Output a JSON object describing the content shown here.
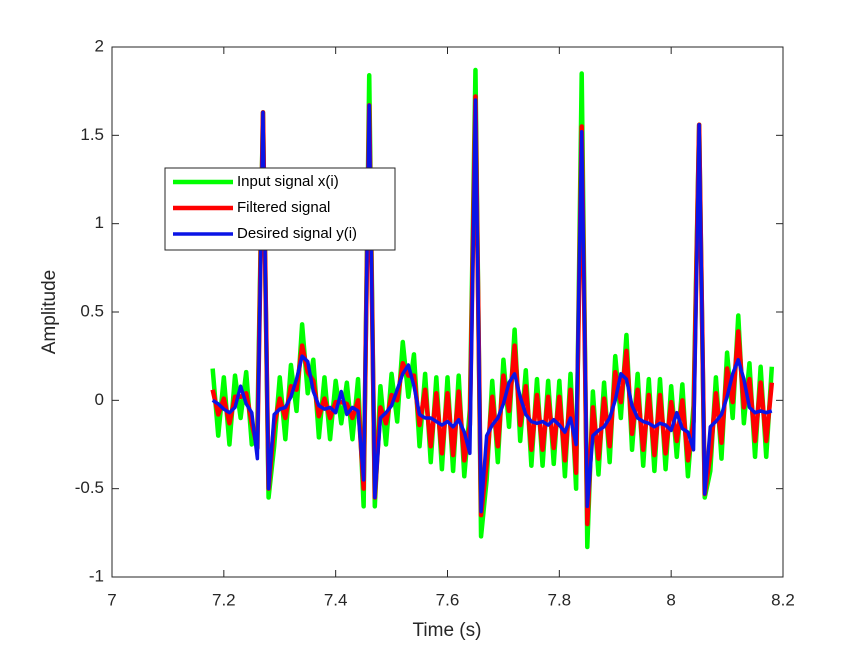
{
  "chart_data": {
    "type": "line",
    "xlabel": "Time (s)",
    "ylabel": "Amplitude",
    "x": [
      7.18,
      7.19,
      7.2,
      7.21,
      7.22,
      7.23,
      7.24,
      7.25,
      7.26,
      7.27,
      7.28,
      7.29,
      7.3,
      7.31,
      7.32,
      7.33,
      7.34,
      7.35,
      7.36,
      7.37,
      7.38,
      7.39,
      7.4,
      7.41,
      7.42,
      7.43,
      7.44,
      7.45,
      7.46,
      7.47,
      7.48,
      7.49,
      7.5,
      7.51,
      7.52,
      7.53,
      7.54,
      7.55,
      7.56,
      7.57,
      7.58,
      7.59,
      7.6,
      7.61,
      7.62,
      7.63,
      7.64,
      7.65,
      7.66,
      7.67,
      7.68,
      7.69,
      7.7,
      7.71,
      7.72,
      7.73,
      7.74,
      7.75,
      7.76,
      7.77,
      7.78,
      7.79,
      7.8,
      7.81,
      7.82,
      7.83,
      7.84,
      7.85,
      7.86,
      7.87,
      7.88,
      7.89,
      7.9,
      7.91,
      7.92,
      7.93,
      7.94,
      7.95,
      7.96,
      7.97,
      7.98,
      7.99,
      8,
      8.01,
      8.02,
      8.03,
      8.04,
      8.05,
      8.06,
      8.07,
      8.08,
      8.09,
      8.1,
      8.11,
      8.12,
      8.13,
      8.14,
      8.15,
      8.16,
      8.17,
      8.18
    ],
    "series": [
      {
        "name": "Input signal x(i)",
        "color": "#00ff00",
        "width": 4.5,
        "values": [
          0.18,
          -0.2,
          0.13,
          -0.25,
          0.14,
          -0.1,
          0.16,
          -0.25,
          -0.15,
          1.63,
          -0.55,
          -0.26,
          0.13,
          -0.22,
          0.2,
          -0.06,
          0.43,
          0.04,
          0.23,
          -0.21,
          0.13,
          -0.22,
          0.11,
          -0.13,
          0.1,
          -0.22,
          0.12,
          -0.6,
          1.84,
          -0.6,
          0.08,
          -0.25,
          0.15,
          -0.12,
          0.33,
          0.02,
          0.26,
          -0.26,
          0.15,
          -0.35,
          0.13,
          -0.39,
          0.13,
          -0.4,
          0.14,
          -0.43,
          -0.05,
          1.87,
          -0.77,
          -0.45,
          0.11,
          -0.35,
          0.23,
          -0.15,
          0.4,
          -0.23,
          0.17,
          -0.37,
          0.12,
          -0.37,
          0.11,
          -0.36,
          0.11,
          -0.43,
          0.15,
          -0.5,
          1.85,
          -0.83,
          0.05,
          -0.42,
          0.1,
          -0.35,
          0.25,
          -0.1,
          0.37,
          -0.28,
          0.15,
          -0.37,
          0.12,
          -0.4,
          0.12,
          -0.39,
          0.08,
          -0.32,
          0.09,
          -0.43,
          -0.03,
          1.56,
          -0.55,
          -0.4,
          0.13,
          -0.33,
          0.27,
          -0.1,
          0.48,
          -0.13,
          0.21,
          -0.32,
          0.19,
          -0.32,
          0.19
        ]
      },
      {
        "name": "Filtered signal",
        "color": "#ff0000",
        "width": 4.5,
        "values": [
          0.06,
          -0.08,
          0.01,
          -0.13,
          0.02,
          0.02,
          0.04,
          -0.13,
          -0.27,
          1.63,
          -0.5,
          -0.14,
          0.01,
          -0.1,
          0.08,
          0.06,
          0.31,
          0.16,
          0.11,
          -0.09,
          0.01,
          -0.1,
          -0.01,
          -0.01,
          -0.02,
          -0.1,
          0.0,
          -0.5,
          1.67,
          -0.55,
          -0.04,
          -0.13,
          0.03,
          0.0,
          0.21,
          0.14,
          0.14,
          -0.14,
          0.06,
          -0.26,
          0.04,
          -0.3,
          0.04,
          -0.31,
          0.05,
          -0.34,
          -0.14,
          1.72,
          -0.65,
          -0.36,
          0.02,
          -0.26,
          0.14,
          -0.06,
          0.31,
          -0.14,
          0.08,
          -0.28,
          0.03,
          -0.28,
          0.02,
          -0.27,
          0.02,
          -0.34,
          0.06,
          -0.41,
          1.55,
          -0.7,
          -0.04,
          -0.33,
          0.01,
          -0.26,
          0.16,
          -0.01,
          0.28,
          -0.19,
          0.06,
          -0.28,
          0.03,
          -0.31,
          0.03,
          -0.3,
          -0.01,
          -0.23,
          0.0,
          -0.34,
          -0.12,
          1.56,
          -0.53,
          -0.31,
          0.04,
          -0.24,
          0.18,
          -0.01,
          0.39,
          -0.04,
          0.12,
          -0.23,
          0.1,
          -0.23,
          0.1
        ]
      },
      {
        "name": "Desired signal y(i)",
        "color": "#0a14e6",
        "width": 3.5,
        "values": [
          0.0,
          -0.02,
          -0.05,
          -0.07,
          -0.04,
          0.08,
          -0.02,
          -0.07,
          -0.33,
          1.63,
          -0.5,
          -0.08,
          -0.05,
          -0.04,
          0.02,
          0.12,
          0.25,
          0.22,
          0.05,
          -0.03,
          -0.05,
          -0.04,
          -0.07,
          0.05,
          -0.08,
          -0.04,
          -0.06,
          -0.45,
          1.67,
          -0.55,
          -0.1,
          -0.07,
          -0.03,
          0.06,
          0.15,
          0.2,
          0.08,
          -0.08,
          -0.1,
          -0.1,
          -0.12,
          -0.14,
          -0.12,
          -0.15,
          -0.11,
          -0.18,
          -0.3,
          1.7,
          -0.63,
          -0.2,
          -0.14,
          -0.1,
          -0.02,
          0.1,
          0.15,
          0.02,
          -0.08,
          -0.12,
          -0.13,
          -0.12,
          -0.14,
          -0.11,
          -0.14,
          -0.18,
          -0.1,
          -0.25,
          1.52,
          -0.6,
          -0.2,
          -0.17,
          -0.15,
          -0.1,
          0.0,
          0.15,
          0.12,
          -0.03,
          -0.1,
          -0.12,
          -0.13,
          -0.15,
          -0.13,
          -0.14,
          -0.17,
          -0.07,
          -0.16,
          -0.18,
          -0.28,
          1.56,
          -0.53,
          -0.15,
          -0.12,
          -0.08,
          0.02,
          0.15,
          0.23,
          0.12,
          -0.04,
          -0.07,
          -0.06,
          -0.07,
          -0.06
        ]
      }
    ],
    "xlim": [
      7,
      8.2
    ],
    "xticks": [
      7,
      7.2,
      7.4,
      7.6,
      7.8,
      8,
      8.2
    ],
    "ylim": [
      -1,
      2
    ],
    "yticks": [
      -1,
      -0.5,
      0,
      0.5,
      1,
      1.5,
      2
    ],
    "grid": false,
    "box": true,
    "legend": true
  }
}
